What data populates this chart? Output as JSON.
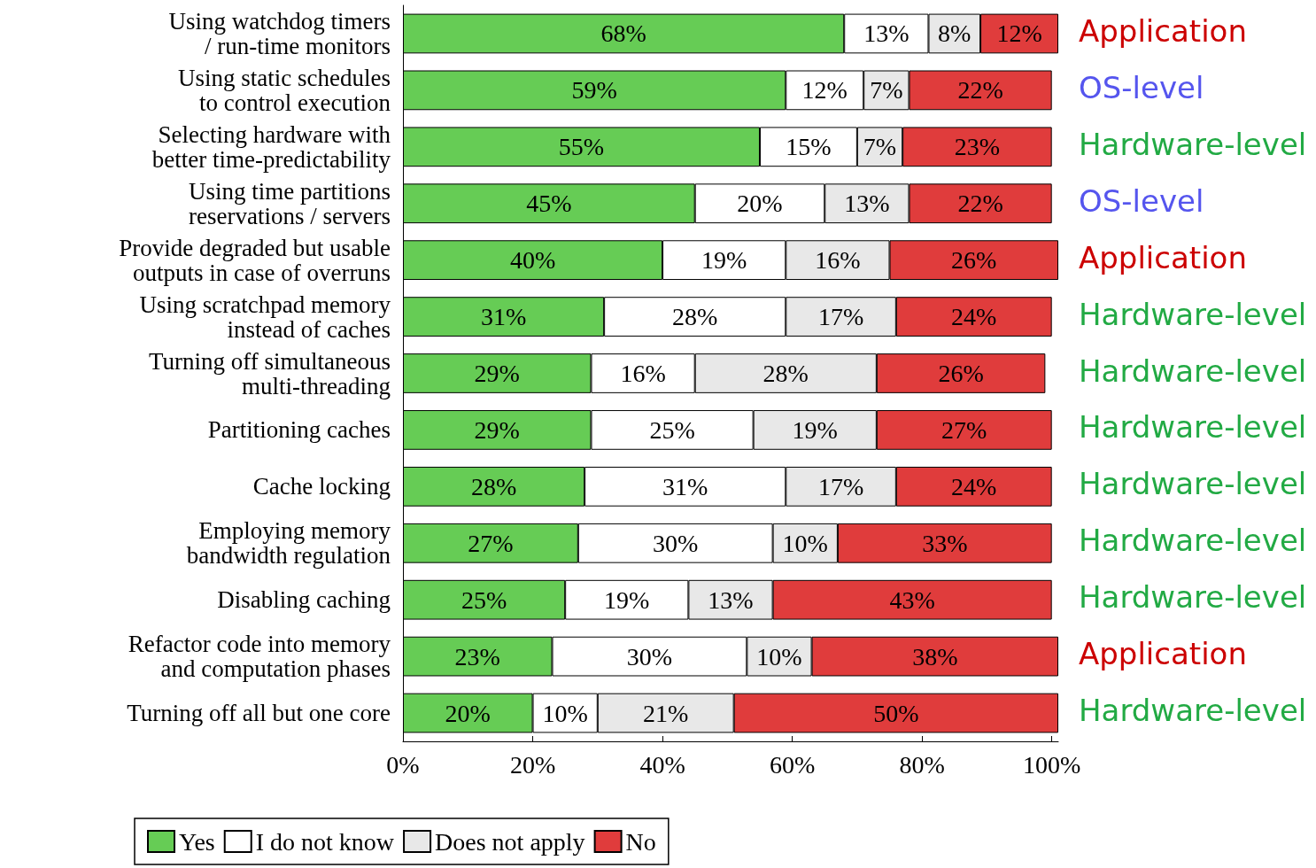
{
  "chart_data": {
    "type": "bar",
    "orientation": "horizontal",
    "stacked": true,
    "legend": "bottom",
    "grid": false,
    "categories": [
      "Using watchdog timers\n/ run-time monitors",
      "Using static schedules\nto control execution",
      "Selecting hardware with\nbetter time-predictability",
      "Using time partitions\nreservations / servers",
      "Provide degraded but usable\noutputs in case of overruns",
      "Using scratchpad memory\ninstead of caches",
      "Turning off simultaneous\nmulti-threading",
      "Partitioning caches",
      "Cache locking",
      "Employing memory\nbandwidth regulation",
      "Disabling caching",
      "Refactor code into memory\nand computation phases",
      "Turning off all but one core"
    ],
    "xlim": [
      0,
      101
    ],
    "xticks": [
      {
        "value": 0,
        "label": "0%"
      },
      {
        "value": 20,
        "label": "20%"
      },
      {
        "value": 40,
        "label": "40%"
      },
      {
        "value": 60,
        "label": "60%"
      },
      {
        "value": 80,
        "label": "80%"
      },
      {
        "value": 100,
        "label": "100%"
      }
    ],
    "series": [
      {
        "name": "Yes",
        "color": "#66cc55",
        "values": [
          68,
          59,
          55,
          45,
          40,
          31,
          29,
          29,
          28,
          27,
          25,
          23,
          20
        ],
        "value_labels": [
          "68%",
          "59%",
          "55%",
          "45%",
          "40%",
          "31%",
          "29%",
          "29%",
          "28%",
          "27%",
          "25%",
          "23%",
          "20%"
        ]
      },
      {
        "name": "I do not know",
        "color": "#ffffff",
        "values": [
          13,
          12,
          15,
          20,
          19,
          28,
          16,
          25,
          31,
          30,
          19,
          30,
          10
        ],
        "value_labels": [
          "13%",
          "12%",
          "15%",
          "20%",
          "19%",
          "28%",
          "16%",
          "25%",
          "31%",
          "30%",
          "19%",
          "30%",
          "10%"
        ]
      },
      {
        "name": "Does not apply",
        "color": "#e8e8e8",
        "values": [
          8,
          7,
          7,
          13,
          16,
          17,
          28,
          19,
          17,
          10,
          13,
          10,
          21
        ],
        "value_labels": [
          "8%",
          "7%",
          "7%",
          "13%",
          "16%",
          "17%",
          "28%",
          "19%",
          "17%",
          "10%",
          "13%",
          "10%",
          "21%"
        ]
      },
      {
        "name": "No",
        "color": "#e03c3c",
        "values": [
          12,
          22,
          23,
          22,
          26,
          24,
          26,
          27,
          24,
          33,
          43,
          38,
          50
        ],
        "value_labels": [
          "12%",
          "22%",
          "23%",
          "22%",
          "26%",
          "24%",
          "26%",
          "27%",
          "24%",
          "33%",
          "43%",
          "38%",
          "50%"
        ]
      }
    ],
    "annotations": [
      "Application",
      "OS-level",
      "Hardware-level",
      "OS-level",
      "Application",
      "Hardware-level",
      "Hardware-level",
      "Hardware-level",
      "Hardware-level",
      "Hardware-level",
      "Hardware-level",
      "Application",
      "Hardware-level"
    ]
  }
}
